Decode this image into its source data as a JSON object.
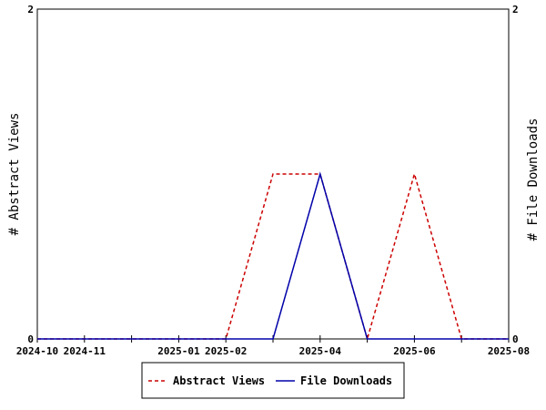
{
  "chart_data": {
    "type": "line",
    "title": "",
    "xlabel": "",
    "y_left_label": "# Abstract Views",
    "y_right_label": "# File Downloads",
    "x_ticks_labeled": [
      "2024-10",
      "2024-11",
      "2025-01",
      "2025-02",
      "2025-04",
      "2025-06",
      "2025-08"
    ],
    "y_left_ticks": [
      "0",
      "2"
    ],
    "y_right_ticks": [
      "0",
      "2"
    ],
    "ylim": [
      0,
      2
    ],
    "xlim": [
      "2024-10",
      "2025-08"
    ],
    "grid": false,
    "legend_position": "bottom-center",
    "series": [
      {
        "name": "Abstract Views",
        "color": "#cc0000",
        "style": "dashed",
        "axis": "left",
        "points": [
          {
            "x": "2024-10",
            "y": 0
          },
          {
            "x": "2024-11",
            "y": 0
          },
          {
            "x": "2024-12",
            "y": 0
          },
          {
            "x": "2025-01",
            "y": 0
          },
          {
            "x": "2025-02",
            "y": 0
          },
          {
            "x": "2025-03",
            "y": 1
          },
          {
            "x": "2025-04",
            "y": 1
          },
          {
            "x": "2025-05",
            "y": 0
          },
          {
            "x": "2025-06",
            "y": 1
          },
          {
            "x": "2025-07",
            "y": 0
          },
          {
            "x": "2025-08",
            "y": 0
          }
        ]
      },
      {
        "name": "File Downloads",
        "color": "#0000aa",
        "style": "solid",
        "axis": "right",
        "points": [
          {
            "x": "2024-10",
            "y": 0
          },
          {
            "x": "2024-11",
            "y": 0
          },
          {
            "x": "2024-12",
            "y": 0
          },
          {
            "x": "2025-01",
            "y": 0
          },
          {
            "x": "2025-02",
            "y": 0
          },
          {
            "x": "2025-03",
            "y": 0
          },
          {
            "x": "2025-04",
            "y": 1
          },
          {
            "x": "2025-05",
            "y": 0
          },
          {
            "x": "2025-06",
            "y": 0
          },
          {
            "x": "2025-07",
            "y": 0
          },
          {
            "x": "2025-08",
            "y": 0
          }
        ]
      }
    ]
  }
}
